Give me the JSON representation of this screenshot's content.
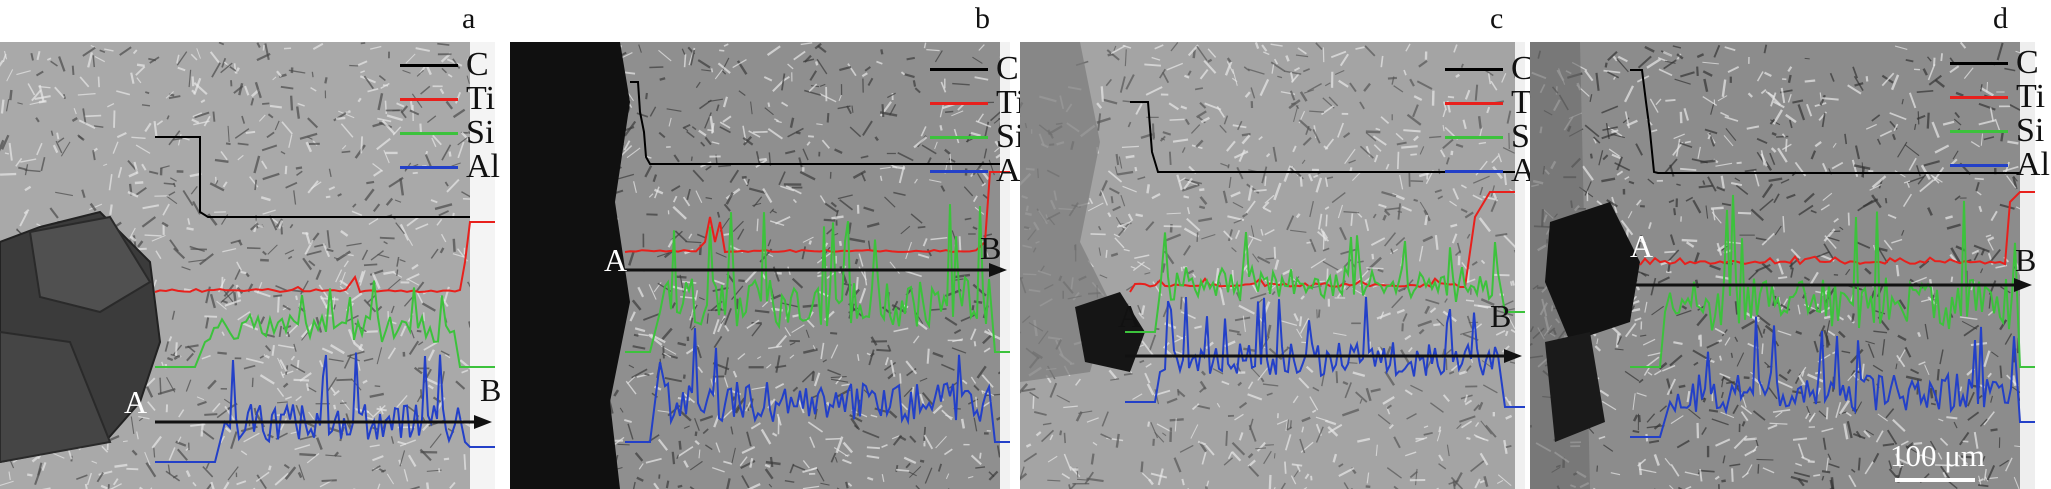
{
  "panels": [
    {
      "label": "a"
    },
    {
      "label": "b"
    },
    {
      "label": "c"
    },
    {
      "label": "d"
    }
  ],
  "legend": [
    {
      "name": "C",
      "color": "#000000"
    },
    {
      "name": "Ti",
      "color": "#e8201c"
    },
    {
      "name": "Si",
      "color": "#3cc23c"
    },
    {
      "name": "Al",
      "color": "#2340c8"
    }
  ],
  "scan_line": {
    "start": "A",
    "end": "B"
  },
  "scale_bar": "100 μm"
}
